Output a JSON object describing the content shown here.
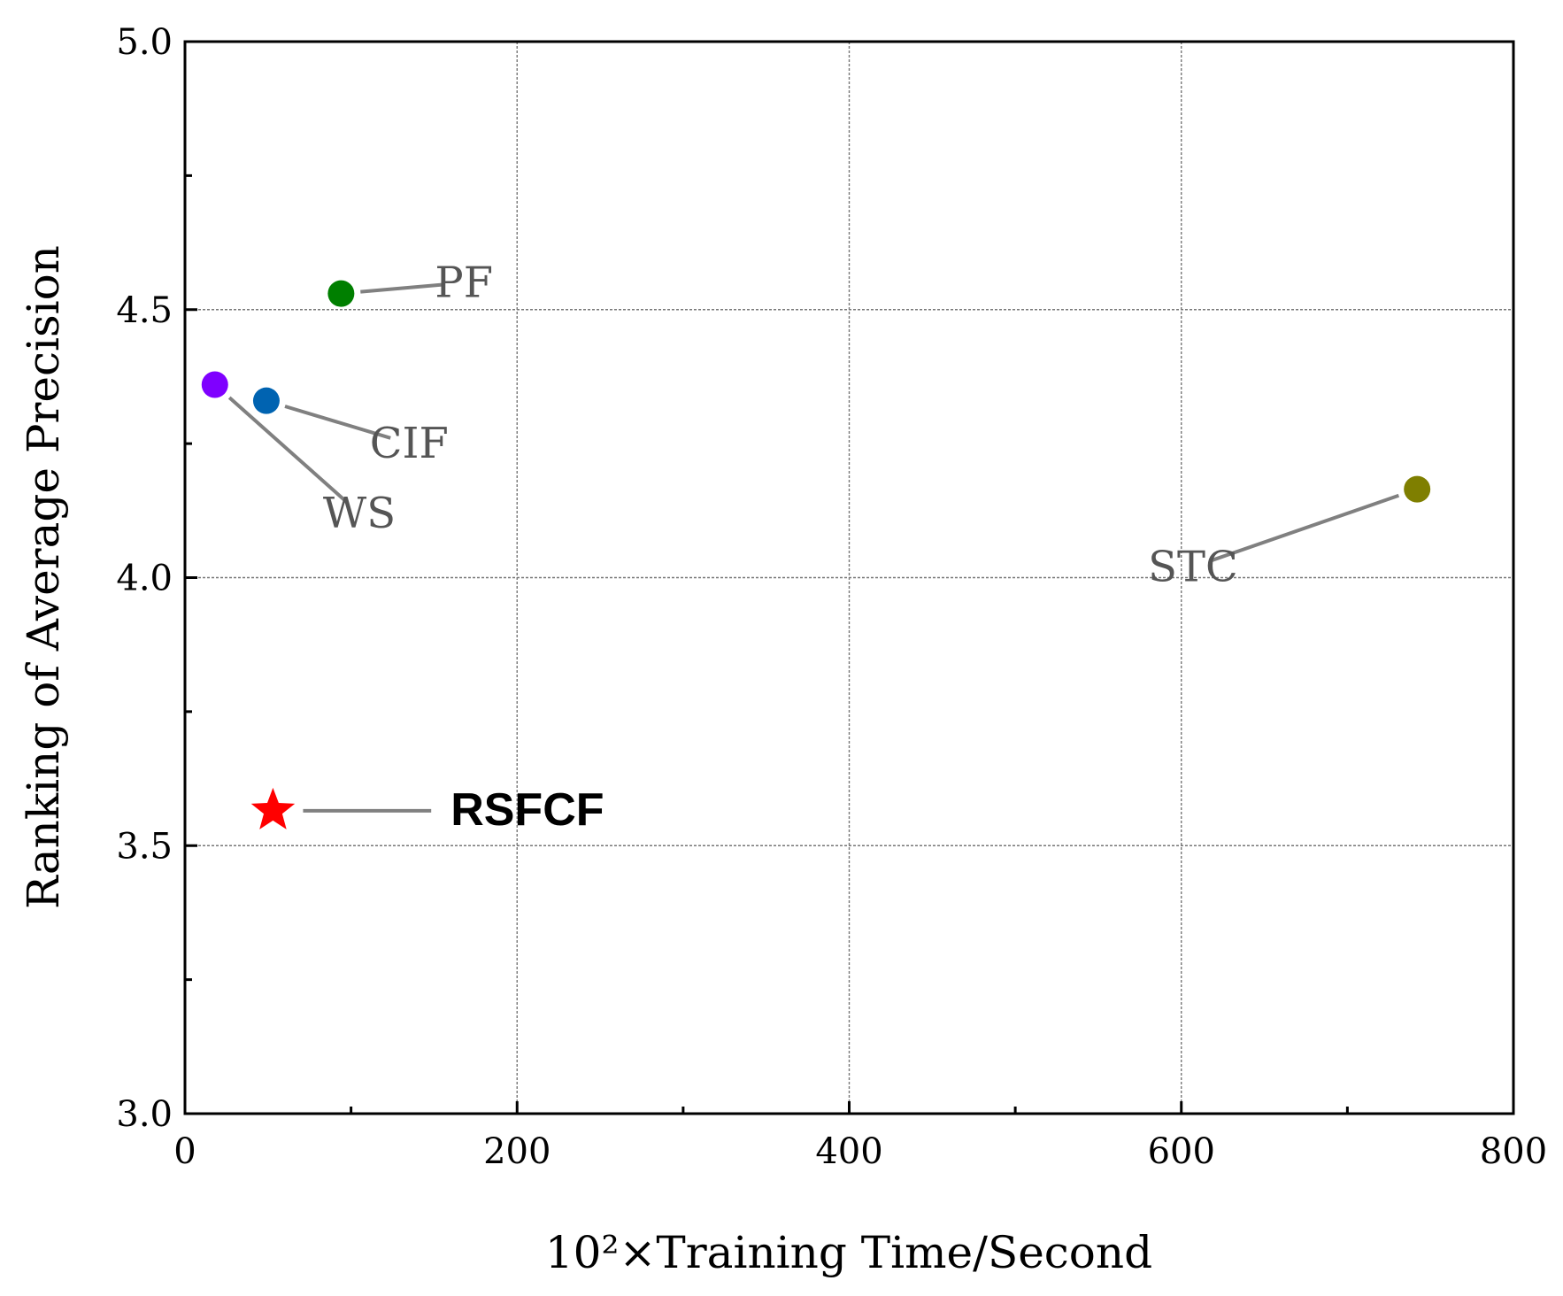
{
  "chart_data": {
    "type": "scatter",
    "title": "",
    "xlabel": "10²×Training Time/Second",
    "ylabel": "Ranking of Average Precision",
    "xlim": [
      0,
      800
    ],
    "ylim": [
      3.0,
      5.0
    ],
    "x_ticks": [
      0,
      200,
      400,
      600,
      800
    ],
    "x_tick_labels": [
      "0",
      "200",
      "400",
      "600",
      "800"
    ],
    "y_ticks": [
      3.0,
      3.5,
      4.0,
      4.5,
      5.0
    ],
    "y_tick_labels": [
      "3.0",
      "3.5",
      "4.0",
      "4.5",
      "5.0"
    ],
    "grid": true,
    "legend": "none",
    "points": [
      {
        "label": "PF",
        "x": 94,
        "y": 4.53,
        "color": "#007f00",
        "marker": "circle",
        "label_x": 168,
        "label_y": 4.55
      },
      {
        "label": "CIF",
        "x": 49,
        "y": 4.33,
        "color": "#0063b1",
        "marker": "circle",
        "label_x": 135,
        "label_y": 4.25
      },
      {
        "label": "WS",
        "x": 18,
        "y": 4.36,
        "color": "#7f00ff",
        "marker": "circle",
        "label_x": 105,
        "label_y": 4.12
      },
      {
        "label": "STC",
        "x": 742,
        "y": 4.165,
        "color": "#7f7f00",
        "marker": "circle",
        "label_x": 607,
        "label_y": 4.02
      },
      {
        "label": "RSFCF",
        "x": 53,
        "y": 3.565,
        "color": "#ff0000",
        "marker": "star",
        "label_x": 160,
        "label_y": 3.565
      }
    ]
  }
}
